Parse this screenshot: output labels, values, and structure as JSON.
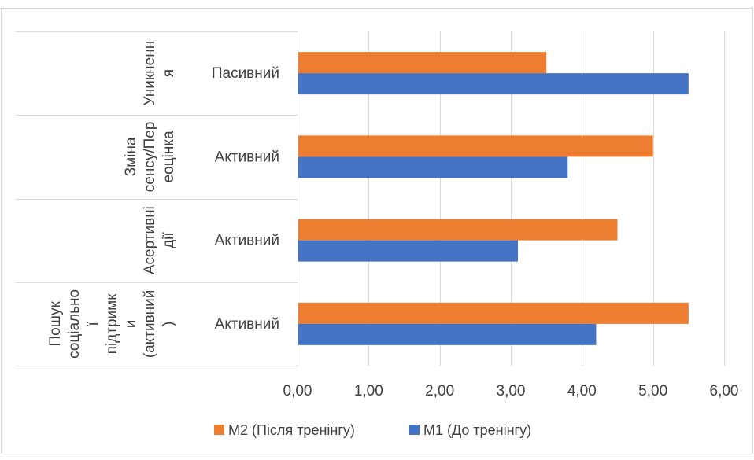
{
  "chart_data": {
    "type": "bar",
    "orientation": "horizontal",
    "categories": [
      {
        "group": "Уникнення",
        "label": "Пасивний"
      },
      {
        "group": "Зміна сенсу/Переоцінка",
        "label": "Активний"
      },
      {
        "group": "Асертивні дії",
        "label": "Активний"
      },
      {
        "group": "Пошук соціальної підтримки (активний)",
        "label": "Активний"
      }
    ],
    "group_label_lines": [
      [
        "Уникненн",
        "я"
      ],
      [
        "Зміна",
        "сенсу/Пер",
        "еоцінка"
      ],
      [
        "Асертивні",
        "дії"
      ],
      [
        "Пошук",
        "соціально",
        "ї",
        "підтримк",
        "и",
        "(активний",
        ")"
      ]
    ],
    "series": [
      {
        "name": "M2 (Після тренінгу)",
        "color": "#ED7D31",
        "values": [
          3.5,
          5.0,
          4.5,
          5.5
        ]
      },
      {
        "name": "M1 (До тренінгу)",
        "color": "#4472C4",
        "values": [
          5.5,
          3.8,
          3.1,
          4.2
        ]
      }
    ],
    "xlim": [
      0,
      6
    ],
    "xticks": [
      "0,00",
      "1,00",
      "2,00",
      "3,00",
      "4,00",
      "5,00",
      "6,00"
    ],
    "grid": true,
    "legend_position": "bottom"
  }
}
